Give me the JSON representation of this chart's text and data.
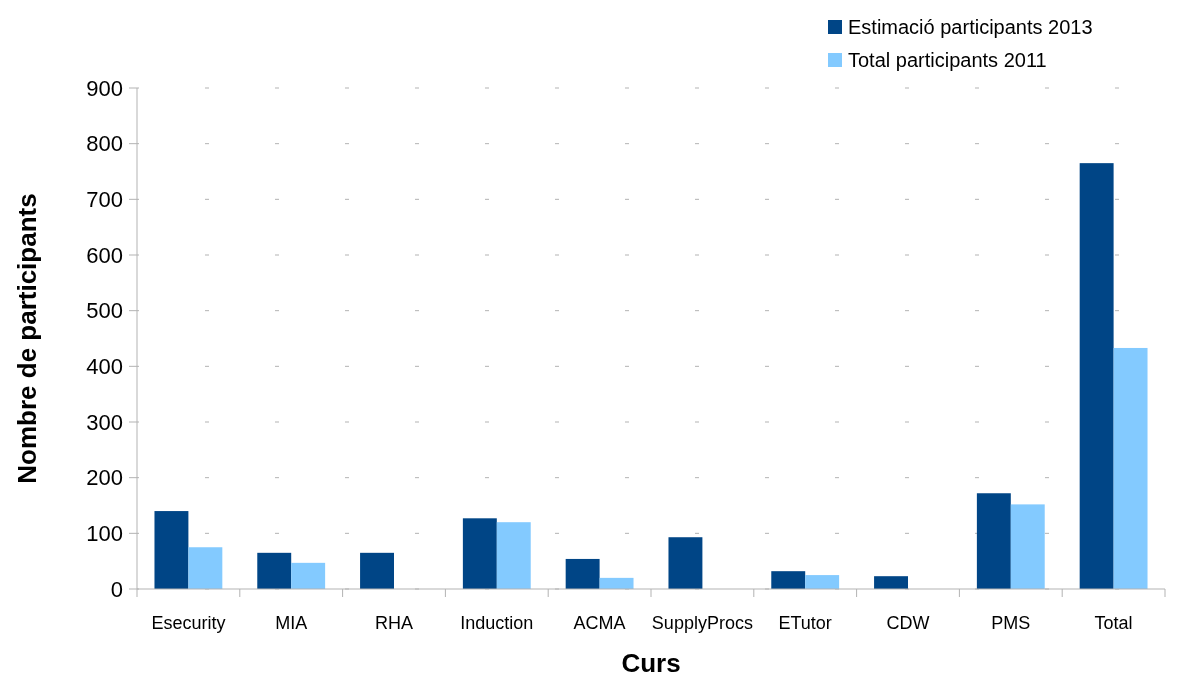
{
  "chart_data": {
    "type": "bar",
    "xlabel": "Curs",
    "ylabel": "Nombre de participants",
    "categories": [
      "Esecurity",
      "MIA",
      "RHA",
      "Induction",
      "ACMA",
      "SupplyProcs",
      "ETutor",
      "CDW",
      "PMS",
      "Total"
    ],
    "series": [
      {
        "name": "Estimació participants 2013",
        "color": "#004586",
        "values": [
          140,
          65,
          65,
          127,
          54,
          93,
          32,
          23,
          172,
          765
        ]
      },
      {
        "name": "Total participants 2011",
        "color": "#83caff",
        "values": [
          75,
          47,
          0,
          120,
          20,
          0,
          25,
          0,
          152,
          433
        ]
      }
    ],
    "ylim": [
      0,
      900
    ],
    "yticks": [
      0,
      100,
      200,
      300,
      400,
      500,
      600,
      700,
      800,
      900
    ],
    "grid": "y",
    "legend": "top right"
  }
}
